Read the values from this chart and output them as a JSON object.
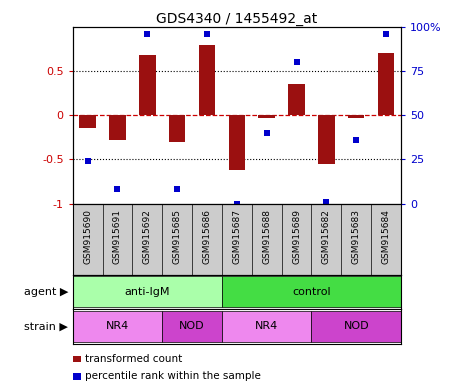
{
  "title": "GDS4340 / 1455492_at",
  "samples": [
    "GSM915690",
    "GSM915691",
    "GSM915692",
    "GSM915685",
    "GSM915686",
    "GSM915687",
    "GSM915688",
    "GSM915689",
    "GSM915682",
    "GSM915683",
    "GSM915684"
  ],
  "bar_values": [
    -0.15,
    -0.28,
    0.68,
    -0.3,
    0.8,
    -0.62,
    -0.03,
    0.35,
    -0.55,
    -0.03,
    0.7
  ],
  "dot_values": [
    24,
    8,
    96,
    8,
    96,
    0,
    40,
    80,
    1,
    36,
    96
  ],
  "bar_color": "#9B1010",
  "dot_color": "#0000CC",
  "ylim": [
    -1.0,
    1.0
  ],
  "yticks_left": [
    -1.0,
    -0.5,
    0.0,
    0.5
  ],
  "ytick_labels_left": [
    "-1",
    "-0.5",
    "0",
    "0.5"
  ],
  "yticks_right": [
    0,
    25,
    50,
    75,
    100
  ],
  "ytick_labels_right": [
    "0",
    "25",
    "50",
    "75",
    "100%"
  ],
  "hlines_dotted": [
    0.5,
    -0.5
  ],
  "hline_zero": 0.0,
  "agent_groups": [
    {
      "label": "anti-IgM",
      "start": 0,
      "end": 5,
      "color": "#AAFFAA"
    },
    {
      "label": "control",
      "start": 5,
      "end": 11,
      "color": "#44DD44"
    }
  ],
  "strain_groups": [
    {
      "label": "NR4",
      "start": 0,
      "end": 3,
      "color": "#EE88EE"
    },
    {
      "label": "NOD",
      "start": 3,
      "end": 5,
      "color": "#CC44CC"
    },
    {
      "label": "NR4",
      "start": 5,
      "end": 8,
      "color": "#EE88EE"
    },
    {
      "label": "NOD",
      "start": 8,
      "end": 11,
      "color": "#CC44CC"
    }
  ],
  "legend_items": [
    {
      "label": "transformed count",
      "color": "#9B1010"
    },
    {
      "label": "percentile rank within the sample",
      "color": "#0000CC"
    }
  ],
  "agent_label": "agent",
  "strain_label": "strain",
  "bg_color": "#FFFFFF",
  "sample_bg_color": "#CCCCCC",
  "zero_line_color": "#CC0000",
  "bar_width": 0.55
}
